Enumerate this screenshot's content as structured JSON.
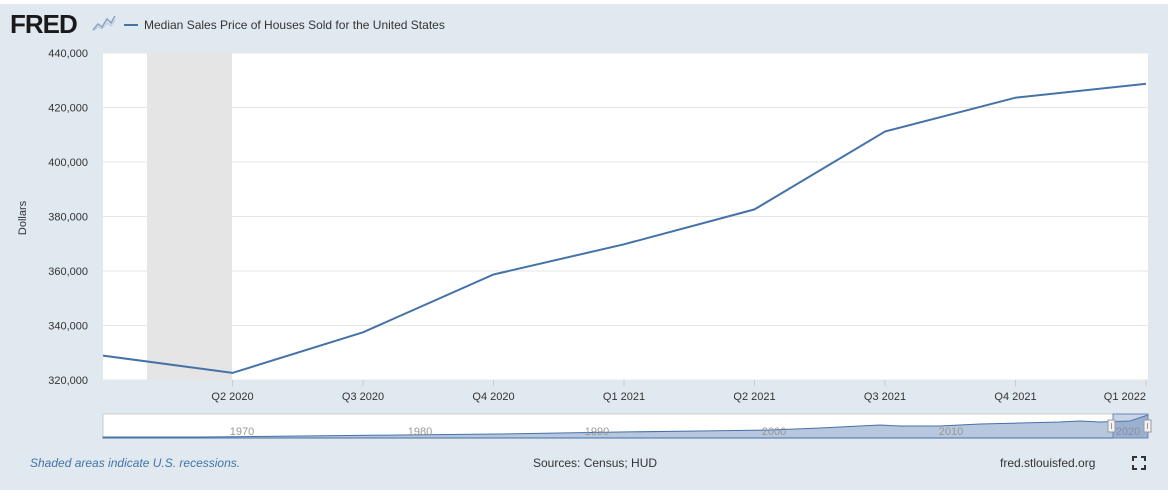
{
  "header": {
    "logo_text": "FRED",
    "logo_icon": "fred-chart-icon"
  },
  "legend": {
    "series_label": "Median Sales Price of Houses Sold for the United States",
    "color": "#4572a7"
  },
  "footer": {
    "recession_note": "Shaded areas indicate U.S. recessions.",
    "sources": "Sources: Census; HUD",
    "site": "fred.stlouisfed.org",
    "fullscreen_icon": "fullscreen-icon"
  },
  "colors": {
    "background": "#e1e9f0",
    "plot": "#ffffff",
    "series": "#4572a7",
    "recession": "#e5e5e5"
  },
  "chart_data": {
    "type": "line",
    "title": "",
    "ylabel": "Dollars",
    "xlabel": "",
    "ylim": [
      320000,
      440000
    ],
    "yticks": [
      320000,
      340000,
      360000,
      380000,
      400000,
      420000,
      440000
    ],
    "ytick_labels": [
      "320,000",
      "340,000",
      "360,000",
      "380,000",
      "400,000",
      "420,000",
      "440,000"
    ],
    "xtick_labels": [
      "Q2 2020",
      "Q3 2020",
      "Q4 2020",
      "Q1 2021",
      "Q2 2021",
      "Q3 2021",
      "Q4 2021",
      "Q1 2022"
    ],
    "x": [
      "Q1 2020",
      "Q2 2020",
      "Q3 2020",
      "Q4 2020",
      "Q1 2021",
      "Q2 2021",
      "Q3 2021",
      "Q4 2021",
      "Q1 2022"
    ],
    "series": [
      {
        "name": "Median Sales Price of Houses Sold for the United States",
        "values": [
          329000,
          322600,
          337500,
          358700,
          369800,
          382600,
          411200,
          423600,
          428700
        ]
      }
    ],
    "recession": {
      "start": "Feb 2020",
      "end": "Apr 2020"
    },
    "grid": true,
    "navigator": {
      "labels": [
        "1970",
        "1980",
        "1990",
        "2000",
        "2010",
        "2020"
      ]
    }
  }
}
